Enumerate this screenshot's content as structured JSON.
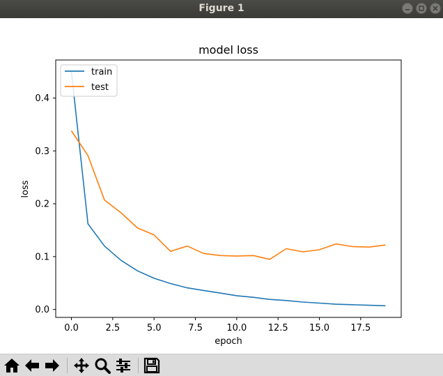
{
  "window": {
    "title": "Figure 1"
  },
  "chart_data": {
    "type": "line",
    "title": "model loss",
    "xlabel": "epoch",
    "ylabel": "loss",
    "xlim": [
      -0.95,
      19.95
    ],
    "ylim": [
      -0.015,
      0.472
    ],
    "x_ticks": [
      0,
      2.5,
      5,
      7.5,
      10,
      12.5,
      15,
      17.5
    ],
    "x_tick_labels": [
      "0.0",
      "2.5",
      "5.0",
      "7.5",
      "10.0",
      "12.5",
      "15.0",
      "17.5"
    ],
    "y_ticks": [
      0,
      0.1,
      0.2,
      0.3,
      0.4
    ],
    "y_tick_labels": [
      "0.0",
      "0.1",
      "0.2",
      "0.3",
      "0.4"
    ],
    "grid": false,
    "legend": "upper left",
    "x": [
      0,
      1,
      2,
      3,
      4,
      5,
      6,
      7,
      8,
      9,
      10,
      11,
      12,
      13,
      14,
      15,
      16,
      17,
      18,
      19
    ],
    "series": [
      {
        "name": "train",
        "color": "#1f77b4",
        "values": [
          0.45,
          0.162,
          0.12,
          0.093,
          0.073,
          0.059,
          0.049,
          0.041,
          0.036,
          0.031,
          0.026,
          0.023,
          0.019,
          0.017,
          0.014,
          0.012,
          0.01,
          0.009,
          0.008,
          0.007
        ]
      },
      {
        "name": "test",
        "color": "#ff7f0e",
        "values": [
          0.338,
          0.291,
          0.207,
          0.183,
          0.154,
          0.141,
          0.11,
          0.12,
          0.106,
          0.102,
          0.101,
          0.102,
          0.095,
          0.115,
          0.109,
          0.113,
          0.124,
          0.119,
          0.118,
          0.122
        ]
      }
    ]
  },
  "toolbar": {
    "buttons": [
      {
        "name": "home-button",
        "icon": "home-icon"
      },
      {
        "name": "back-button",
        "icon": "arrow-left-icon"
      },
      {
        "name": "forward-button",
        "icon": "arrow-right-icon"
      },
      {
        "name": "pan-button",
        "icon": "move-icon"
      },
      {
        "name": "zoom-button",
        "icon": "magnifier-icon"
      },
      {
        "name": "configure-subplots-button",
        "icon": "sliders-icon"
      },
      {
        "name": "save-button",
        "icon": "floppy-disk-icon"
      }
    ]
  }
}
